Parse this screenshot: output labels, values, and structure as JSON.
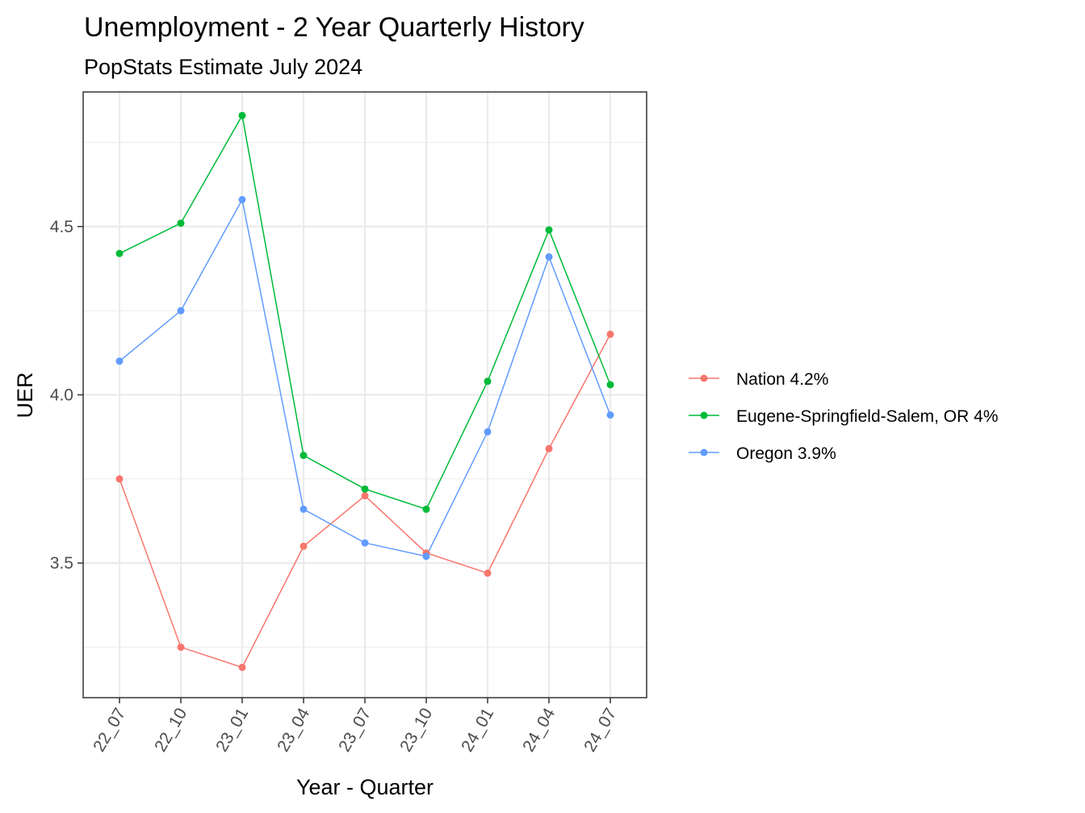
{
  "chart_data": {
    "type": "line",
    "title": "Unemployment - 2 Year Quarterly History",
    "subtitle": "PopStats Estimate July 2024",
    "xlabel": "Year - Quarter",
    "ylabel": "UER",
    "categories": [
      "22_07",
      "22_10",
      "23_01",
      "23_04",
      "23_07",
      "23_10",
      "24_01",
      "24_04",
      "24_07"
    ],
    "ylim": [
      3.1,
      4.9
    ],
    "yticks": [
      3.5,
      4.0,
      4.5
    ],
    "yticks_labels": [
      "3.5",
      "4.0",
      "4.5"
    ],
    "grid": true,
    "legend_position": "right",
    "series": [
      {
        "name": "Nation 4.2%",
        "color": "#F8766D",
        "values": [
          3.75,
          3.25,
          3.19,
          3.55,
          3.7,
          3.53,
          3.47,
          3.84,
          4.18
        ]
      },
      {
        "name": "Eugene-Springfield-Salem, OR 4%",
        "color": "#00BA38",
        "values": [
          4.42,
          4.51,
          4.83,
          3.82,
          3.72,
          3.66,
          4.04,
          4.49,
          4.03
        ]
      },
      {
        "name": "Oregon 3.9%",
        "color": "#619CFF",
        "values": [
          4.1,
          4.25,
          4.58,
          3.66,
          3.56,
          3.52,
          3.89,
          4.41,
          3.94
        ]
      }
    ]
  }
}
